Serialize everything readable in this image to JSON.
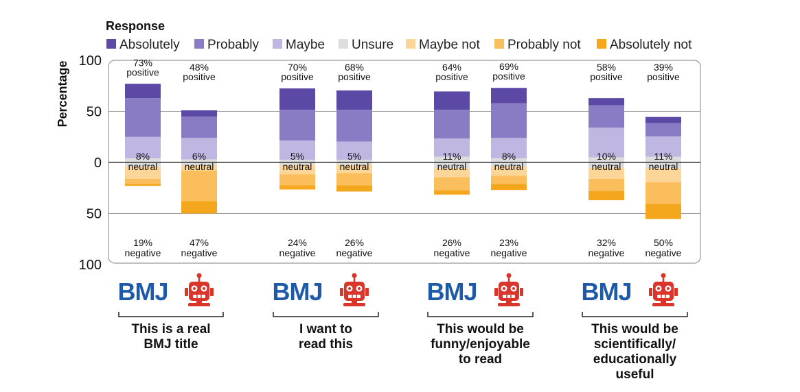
{
  "chart_data": {
    "type": "bar",
    "stacking": "diverging",
    "legend_title": "Response",
    "legend_position": "top",
    "ylabel": "Percentage",
    "ylim": [
      -100,
      100
    ],
    "yticks": [
      {
        "value": 100,
        "label": "100"
      },
      {
        "value": 50,
        "label": "50"
      },
      {
        "value": 0,
        "label": "0"
      },
      {
        "value": -50,
        "label": "50"
      },
      {
        "value": -100,
        "label": "100"
      }
    ],
    "grid": true,
    "series": [
      {
        "name": "Absolutely",
        "direction": "positive",
        "color": "#5b49a5"
      },
      {
        "name": "Probably",
        "direction": "positive",
        "color": "#8a7cc4"
      },
      {
        "name": "Maybe",
        "direction": "positive",
        "color": "#bfb6e1"
      },
      {
        "name": "Unsure",
        "direction": "neutral",
        "color": "#dddddd"
      },
      {
        "name": "Maybe not",
        "direction": "negative",
        "color": "#fcd598"
      },
      {
        "name": "Probably not",
        "direction": "negative",
        "color": "#fbbe5c"
      },
      {
        "name": "Absolutely not",
        "direction": "negative",
        "color": "#f4a71c"
      }
    ],
    "groups": [
      {
        "label": "This is a real BMJ title",
        "label_lines": [
          "This is a real",
          "BMJ title"
        ]
      },
      {
        "label": "I want to read this",
        "label_lines": [
          "I want to",
          "read this"
        ]
      },
      {
        "label": "This would be funny/enjoyable to read",
        "label_lines": [
          "This would be",
          "funny/enjoyable",
          "to read"
        ]
      },
      {
        "label": "This would be scientifically/educationally useful",
        "label_lines": [
          "This would be",
          "scientifically/",
          "educationally",
          "useful"
        ]
      }
    ],
    "bars": [
      {
        "group": 0,
        "source": "BMJ",
        "values": {
          "Absolutely": 14,
          "Probably": 38,
          "Maybe": 21,
          "Unsure": 8,
          "Maybe not": 12,
          "Probably not": 5,
          "Absolutely not": 2
        },
        "positive_label": [
          "73%",
          "positive"
        ],
        "neutral_label": [
          "8%",
          "neutral"
        ],
        "negative_label": [
          "19%",
          "negative"
        ]
      },
      {
        "group": 0,
        "source": "AI",
        "values": {
          "Absolutely": 6,
          "Probably": 21,
          "Maybe": 21,
          "Unsure": 6,
          "Maybe not": 5,
          "Probably not": 30,
          "Absolutely not": 12
        },
        "positive_label": [
          "48%",
          "positive"
        ],
        "neutral_label": [
          "6%",
          "neutral"
        ],
        "negative_label": [
          "47%",
          "negative"
        ]
      },
      {
        "group": 1,
        "source": "BMJ",
        "values": {
          "Absolutely": 21,
          "Probably": 30,
          "Maybe": 19,
          "Unsure": 5,
          "Maybe not": 9,
          "Probably not": 11,
          "Absolutely not": 4
        },
        "positive_label": [
          "70%",
          "positive"
        ],
        "neutral_label": [
          "5%",
          "neutral"
        ],
        "negative_label": [
          "24%",
          "negative"
        ]
      },
      {
        "group": 1,
        "source": "AI",
        "values": {
          "Absolutely": 19,
          "Probably": 31,
          "Maybe": 18,
          "Unsure": 5,
          "Maybe not": 8,
          "Probably not": 12,
          "Absolutely not": 6
        },
        "positive_label": [
          "68%",
          "positive"
        ],
        "neutral_label": [
          "5%",
          "neutral"
        ],
        "negative_label": [
          "26%",
          "negative"
        ]
      },
      {
        "group": 2,
        "source": "BMJ",
        "values": {
          "Absolutely": 18,
          "Probably": 28,
          "Maybe": 18,
          "Unsure": 11,
          "Maybe not": 9,
          "Probably not": 13,
          "Absolutely not": 4
        },
        "positive_label": [
          "64%",
          "positive"
        ],
        "neutral_label": [
          "11%",
          "neutral"
        ],
        "negative_label": [
          "26%",
          "negative"
        ]
      },
      {
        "group": 2,
        "source": "AI",
        "values": {
          "Absolutely": 15,
          "Probably": 34,
          "Maybe": 20,
          "Unsure": 8,
          "Maybe not": 9,
          "Probably not": 8,
          "Absolutely not": 6
        },
        "positive_label": [
          "69%",
          "positive"
        ],
        "neutral_label": [
          "8%",
          "neutral"
        ],
        "negative_label": [
          "23%",
          "negative"
        ]
      },
      {
        "group": 3,
        "source": "BMJ",
        "values": {
          "Absolutely": 7,
          "Probably": 22,
          "Maybe": 29,
          "Unsure": 10,
          "Maybe not": 11,
          "Probably not": 12,
          "Absolutely not": 9
        },
        "positive_label": [
          "58%",
          "positive"
        ],
        "neutral_label": [
          "10%",
          "neutral"
        ],
        "negative_label": [
          "32%",
          "negative"
        ]
      },
      {
        "group": 3,
        "source": "AI",
        "values": {
          "Absolutely": 6,
          "Probably": 13,
          "Maybe": 20,
          "Unsure": 11,
          "Maybe not": 14,
          "Probably not": 21,
          "Absolutely not": 15
        },
        "positive_label": [
          "39%",
          "positive"
        ],
        "neutral_label": [
          "11%",
          "neutral"
        ],
        "negative_label": [
          "50%",
          "negative"
        ]
      }
    ]
  },
  "icons": {
    "bmj_logo": {
      "text": "BMJ",
      "color": "#1e5aa8"
    },
    "robot_icon": {
      "name": "robot-icon",
      "color": "#d9352b"
    }
  }
}
